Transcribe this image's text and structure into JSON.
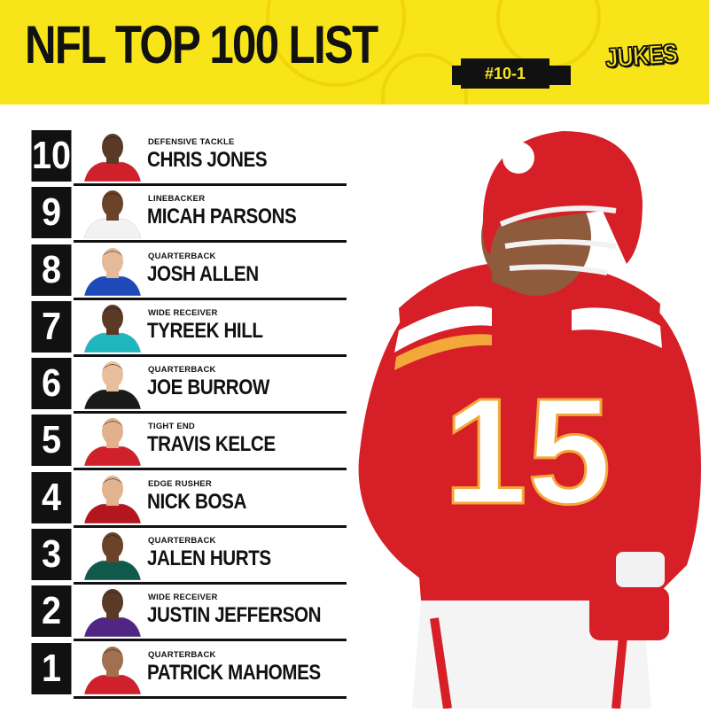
{
  "header": {
    "title": "NFL TOP 100 LIST",
    "range": "#10-1",
    "logo_text": "JUKES",
    "background_color": "#f7e51a"
  },
  "players": [
    {
      "rank": "10",
      "position": "DEFENSIVE TACKLE",
      "name": "CHRIS JONES",
      "jersey_color": "#d0202b",
      "skin": "#5a3a26"
    },
    {
      "rank": "9",
      "position": "LINEBACKER",
      "name": "MICAH PARSONS",
      "jersey_color": "#f2f2f2",
      "skin": "#6b4329"
    },
    {
      "rank": "8",
      "position": "QUARTERBACK",
      "name": "JOSH ALLEN",
      "jersey_color": "#1f49b8",
      "skin": "#e6b997"
    },
    {
      "rank": "7",
      "position": "WIDE RECEIVER",
      "name": "TYREEK HILL",
      "jersey_color": "#1fb7bf",
      "skin": "#5a3a26"
    },
    {
      "rank": "6",
      "position": "QUARTERBACK",
      "name": "JOE BURROW",
      "jersey_color": "#1a1a1a",
      "skin": "#e8bf9c"
    },
    {
      "rank": "5",
      "position": "TIGHT END",
      "name": "TRAVIS KELCE",
      "jersey_color": "#d0202b",
      "skin": "#e3b08d"
    },
    {
      "rank": "4",
      "position": "EDGE RUSHER",
      "name": "NICK BOSA",
      "jersey_color": "#b3161e",
      "skin": "#e2b38f"
    },
    {
      "rank": "3",
      "position": "QUARTERBACK",
      "name": "JALEN HURTS",
      "jersey_color": "#0f5a4a",
      "skin": "#6b4329"
    },
    {
      "rank": "2",
      "position": "WIDE RECEIVER",
      "name": "JUSTIN JEFFERSON",
      "jersey_color": "#4f2683",
      "skin": "#5a3a26"
    },
    {
      "rank": "1",
      "position": "QUARTERBACK",
      "name": "PATRICK MAHOMES",
      "jersey_color": "#d0202b",
      "skin": "#a2704e"
    }
  ],
  "hero": {
    "jersey_number": "15",
    "jersey_color": "#d61f26",
    "helmet_color": "#d61f26",
    "stripe_color": "#f3a93a"
  }
}
